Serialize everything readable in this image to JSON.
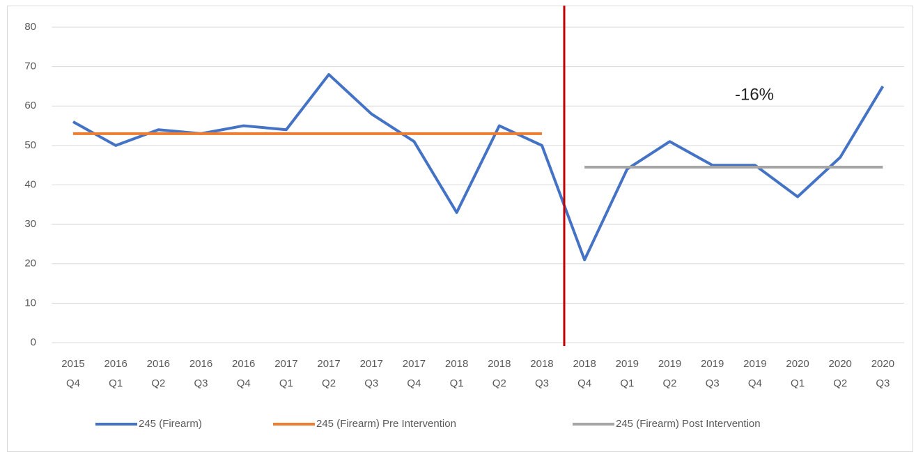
{
  "chart_data": {
    "type": "line",
    "categories": [
      [
        "2015",
        "Q4"
      ],
      [
        "2016",
        "Q1"
      ],
      [
        "2016",
        "Q2"
      ],
      [
        "2016",
        "Q3"
      ],
      [
        "2016",
        "Q4"
      ],
      [
        "2017",
        "Q1"
      ],
      [
        "2017",
        "Q2"
      ],
      [
        "2017",
        "Q3"
      ],
      [
        "2017",
        "Q4"
      ],
      [
        "2018",
        "Q1"
      ],
      [
        "2018",
        "Q2"
      ],
      [
        "2018",
        "Q3"
      ],
      [
        "2018",
        "Q4"
      ],
      [
        "2019",
        "Q1"
      ],
      [
        "2019",
        "Q2"
      ],
      [
        "2019",
        "Q3"
      ],
      [
        "2019",
        "Q4"
      ],
      [
        "2020",
        "Q1"
      ],
      [
        "2020",
        "Q2"
      ],
      [
        "2020",
        "Q3"
      ]
    ],
    "series": [
      {
        "name": "245 (Firearm)",
        "color": "#4472c4",
        "values": [
          56,
          50,
          54,
          53,
          55,
          54,
          68,
          58,
          51,
          33,
          55,
          50,
          21,
          44,
          51,
          45,
          45,
          37,
          47,
          65
        ]
      },
      {
        "name": "245 (Firearm) Pre Intervention",
        "color": "#ed7d31",
        "values": [
          53,
          53,
          53,
          53,
          53,
          53,
          53,
          53,
          53,
          53,
          53,
          53,
          null,
          null,
          null,
          null,
          null,
          null,
          null,
          null
        ]
      },
      {
        "name": "245 (Firearm) Post Intervention",
        "color": "#a5a5a5",
        "values": [
          null,
          null,
          null,
          null,
          null,
          null,
          null,
          null,
          null,
          null,
          null,
          null,
          44.5,
          44.5,
          44.5,
          44.5,
          44.5,
          44.5,
          44.5,
          44.5
        ]
      }
    ],
    "annotation": "-16%",
    "ylim": [
      0,
      80
    ],
    "yticks": [
      0,
      10,
      20,
      30,
      40,
      50,
      60,
      70,
      80
    ],
    "grid": true,
    "legend": "bottom"
  }
}
